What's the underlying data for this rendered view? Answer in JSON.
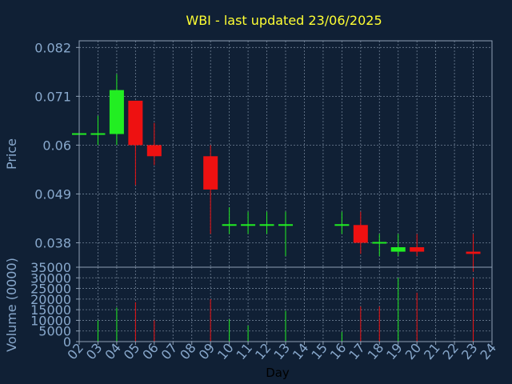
{
  "title": "WBI - last updated 23/06/2025",
  "colors": {
    "background": "#102035",
    "title": "#ffff33",
    "axis_text": "#88a8cc",
    "frame": "#8fa0b5",
    "grid": "#8fa0b5",
    "up": "#22ee22",
    "down": "#ee1111"
  },
  "chart_data": {
    "type": "candlestick",
    "xlabel": "Day",
    "x_ticks": [
      "02",
      "03",
      "04",
      "05",
      "06",
      "07",
      "08",
      "09",
      "10",
      "11",
      "12",
      "13",
      "14",
      "15",
      "16",
      "17",
      "18",
      "19",
      "20",
      "21",
      "22",
      "23",
      "24"
    ],
    "x_range": [
      2,
      24
    ],
    "price_panel": {
      "ylabel": "Price",
      "y_ticks": [
        0.038,
        0.049,
        0.06,
        0.071,
        0.082
      ],
      "ylim": [
        0.0325,
        0.0835
      ],
      "candles": [
        {
          "day": 2,
          "open": 0.0625,
          "high": 0.0625,
          "low": 0.0625,
          "close": 0.0625
        },
        {
          "day": 3,
          "open": 0.0625,
          "high": 0.0666,
          "low": 0.06,
          "close": 0.0625
        },
        {
          "day": 4,
          "open": 0.0625,
          "high": 0.076,
          "low": 0.06,
          "close": 0.0724
        },
        {
          "day": 5,
          "open": 0.07,
          "high": 0.07,
          "low": 0.051,
          "close": 0.06
        },
        {
          "day": 6,
          "open": 0.06,
          "high": 0.065,
          "low": 0.0555,
          "close": 0.0575
        },
        {
          "day": 9,
          "open": 0.0575,
          "high": 0.06,
          "low": 0.04,
          "close": 0.05
        },
        {
          "day": 10,
          "open": 0.042,
          "high": 0.046,
          "low": 0.04,
          "close": 0.042
        },
        {
          "day": 11,
          "open": 0.042,
          "high": 0.045,
          "low": 0.04,
          "close": 0.042
        },
        {
          "day": 12,
          "open": 0.042,
          "high": 0.045,
          "low": 0.04,
          "close": 0.042
        },
        {
          "day": 13,
          "open": 0.042,
          "high": 0.045,
          "low": 0.035,
          "close": 0.042
        },
        {
          "day": 16,
          "open": 0.042,
          "high": 0.045,
          "low": 0.04,
          "close": 0.042
        },
        {
          "day": 17,
          "open": 0.042,
          "high": 0.045,
          "low": 0.0355,
          "close": 0.038
        },
        {
          "day": 18,
          "open": 0.038,
          "high": 0.04,
          "low": 0.035,
          "close": 0.038
        },
        {
          "day": 19,
          "open": 0.036,
          "high": 0.04,
          "low": 0.035,
          "close": 0.037
        },
        {
          "day": 20,
          "open": 0.037,
          "high": 0.04,
          "low": 0.035,
          "close": 0.036
        },
        {
          "day": 23,
          "open": 0.036,
          "high": 0.04,
          "low": 0.0315,
          "close": 0.0355
        }
      ]
    },
    "volume_panel": {
      "ylabel": "Volume (0000)",
      "y_ticks": [
        0,
        5000,
        10000,
        15000,
        20000,
        25000,
        30000,
        35000
      ],
      "ylim": [
        0,
        35000
      ],
      "bars": [
        {
          "day": 3,
          "value": 10000,
          "direction": "up"
        },
        {
          "day": 4,
          "value": 16000,
          "direction": "up"
        },
        {
          "day": 5,
          "value": 18500,
          "direction": "down"
        },
        {
          "day": 6,
          "value": 10000,
          "direction": "down"
        },
        {
          "day": 9,
          "value": 20000,
          "direction": "down"
        },
        {
          "day": 10,
          "value": 10500,
          "direction": "up"
        },
        {
          "day": 11,
          "value": 7500,
          "direction": "up"
        },
        {
          "day": 13,
          "value": 14500,
          "direction": "up"
        },
        {
          "day": 16,
          "value": 4500,
          "direction": "up"
        },
        {
          "day": 17,
          "value": 16500,
          "direction": "down"
        },
        {
          "day": 18,
          "value": 16500,
          "direction": "down"
        },
        {
          "day": 19,
          "value": 30000,
          "direction": "up"
        },
        {
          "day": 20,
          "value": 23000,
          "direction": "down"
        },
        {
          "day": 23,
          "value": 30000,
          "direction": "down"
        }
      ]
    }
  }
}
